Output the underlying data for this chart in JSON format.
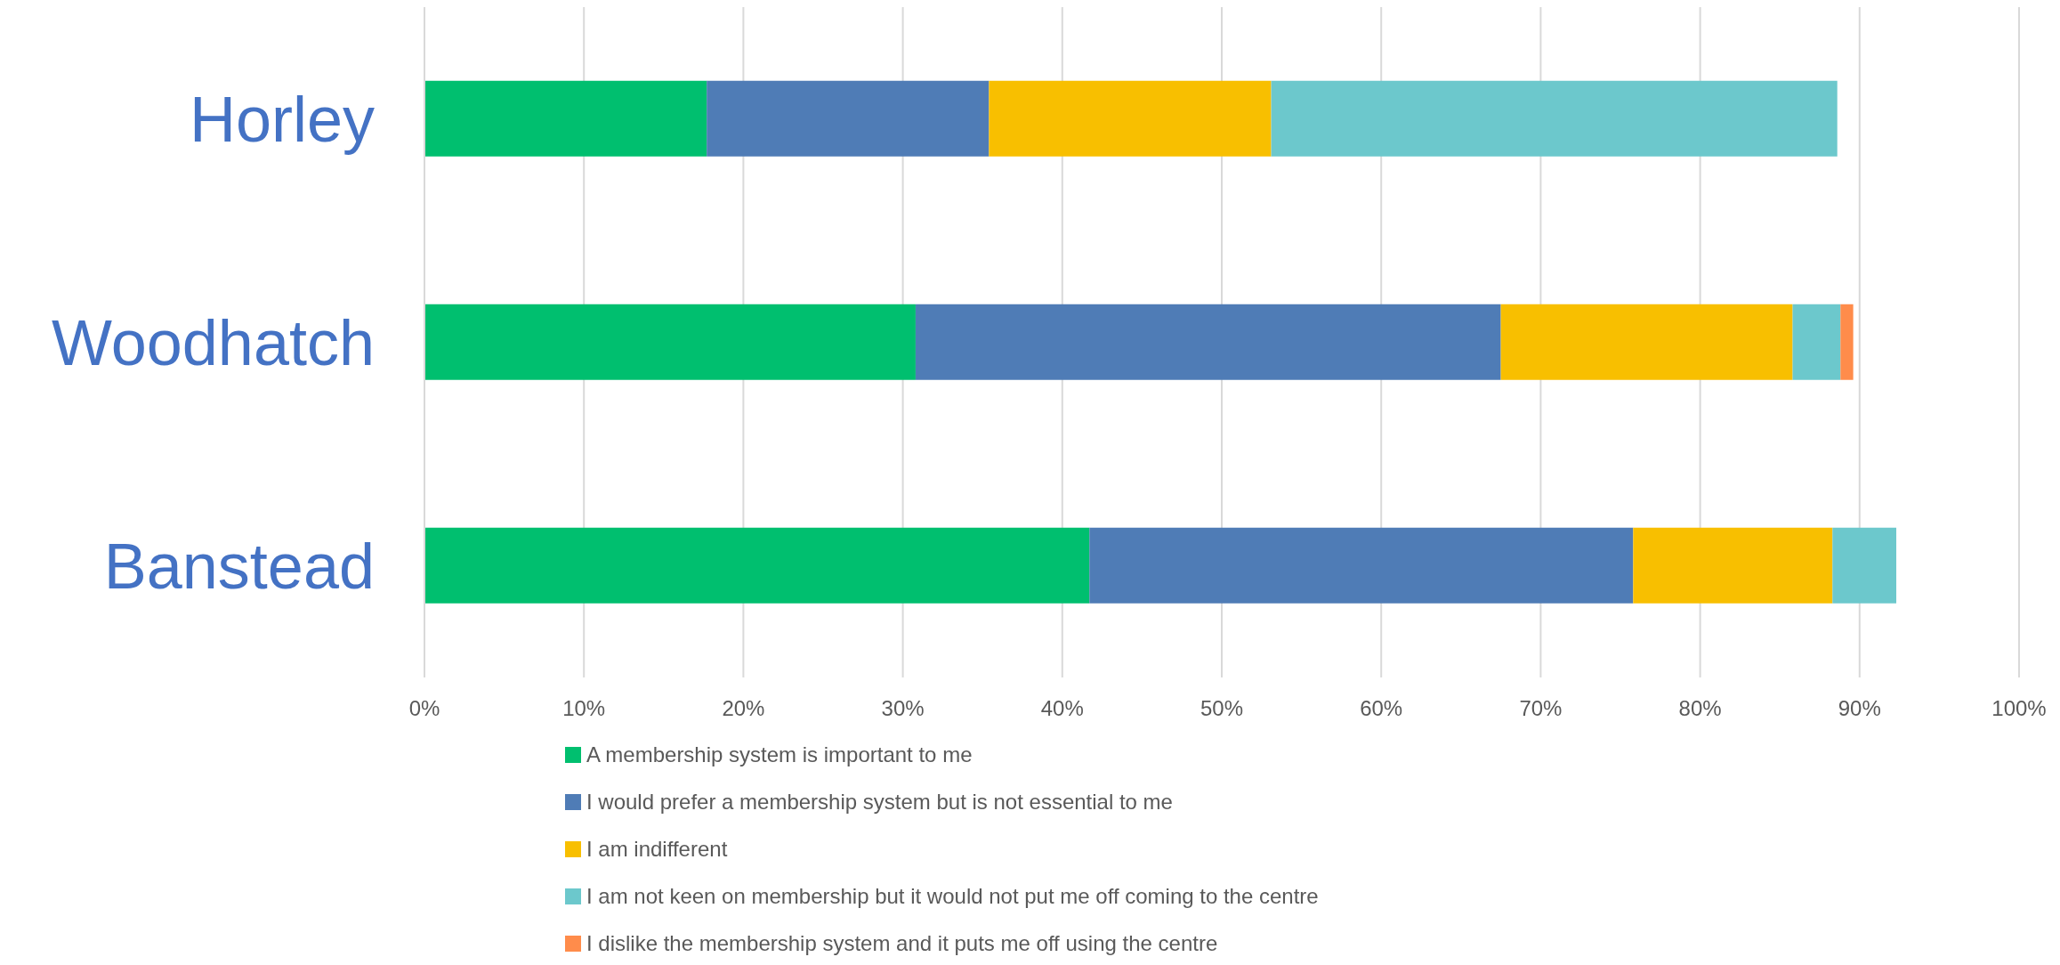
{
  "chart_data": {
    "type": "bar",
    "orientation": "horizontal",
    "stacked": true,
    "categories": [
      "Horley",
      "Woodhatch",
      "Banstead"
    ],
    "series": [
      {
        "name": "A membership system is important to me",
        "color": "#00bf6f",
        "values": [
          17.7,
          30.8,
          41.7
        ]
      },
      {
        "name": "I would prefer a membership system but is not essential to me",
        "color": "#4f7cb6",
        "values": [
          17.7,
          36.7,
          34.1
        ]
      },
      {
        "name": "I am indifferent",
        "color": "#f8bf00",
        "values": [
          17.7,
          18.3,
          12.5
        ]
      },
      {
        "name": "I am not keen on membership but it would not put me off coming to the centre",
        "color": "#6cc8cc",
        "values": [
          35.5,
          3.0,
          4.0
        ]
      },
      {
        "name": "I dislike the membership system and it puts me off using the centre",
        "color": "#ff8c4b",
        "values": [
          0,
          0.8,
          0
        ]
      }
    ],
    "xlim": [
      0,
      100
    ],
    "xticks": [
      {
        "value": 0,
        "label": "0%"
      },
      {
        "value": 10,
        "label": "10%"
      },
      {
        "value": 20,
        "label": "20%"
      },
      {
        "value": 30,
        "label": "30%"
      },
      {
        "value": 40,
        "label": "40%"
      },
      {
        "value": 50,
        "label": "50%"
      },
      {
        "value": 60,
        "label": "60%"
      },
      {
        "value": 70,
        "label": "70%"
      },
      {
        "value": 80,
        "label": "80%"
      },
      {
        "value": 90,
        "label": "90%"
      },
      {
        "value": 100,
        "label": "100%"
      }
    ],
    "grid": "x",
    "legend": "bottom"
  }
}
